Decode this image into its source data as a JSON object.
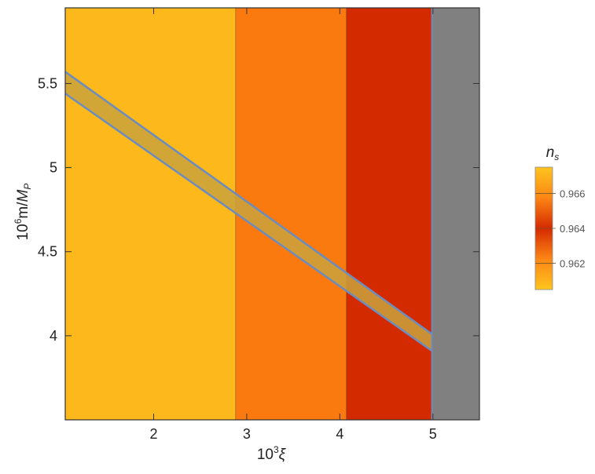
{
  "chart_data": {
    "type": "heatmap",
    "x_axis": {
      "label_base": "10",
      "label_exp": "3",
      "label_symbol": "ξ",
      "range": [
        1.05,
        5.5
      ],
      "ticks": [
        2,
        3,
        4,
        5
      ],
      "tick_labels": [
        "2",
        "3",
        "4",
        "5"
      ]
    },
    "y_axis": {
      "label_base": "10",
      "label_exp": "6",
      "label_mid": "m/",
      "label_sym": "M",
      "label_sub": "P",
      "range": [
        3.5,
        5.95
      ],
      "ticks": [
        4,
        4.5,
        5,
        5.5
      ],
      "tick_labels": [
        "4",
        "4.5",
        "5",
        "5.5"
      ]
    },
    "regions": [
      {
        "x0": 1.05,
        "x1": 2.88,
        "color": "#fdb81b",
        "n_s": 0.967
      },
      {
        "x0": 2.88,
        "x1": 4.07,
        "color": "#fb7a10",
        "n_s": 0.965
      },
      {
        "x0": 4.07,
        "x1": 4.99,
        "color": "#d42a00",
        "n_s": 0.963
      },
      {
        "x0": 4.99,
        "x1": 5.5,
        "color": "#808080",
        "n_s": null
      }
    ],
    "allowed_band": {
      "color": "#c9a23c",
      "edge_color": "#6b8cc0",
      "upper": [
        [
          1.05,
          5.57
        ],
        [
          4.99,
          4.01
        ]
      ],
      "lower": [
        [
          1.05,
          5.44
        ],
        [
          4.99,
          3.91
        ]
      ]
    },
    "legend": {
      "title_sym": "n",
      "title_sub": "s",
      "ticks": [
        0.966,
        0.964,
        0.962
      ],
      "tick_labels": [
        "0.966",
        "0.964",
        "0.962"
      ],
      "range": [
        0.9605,
        0.9675
      ],
      "colors": [
        "#fdc51e",
        "#fc8615",
        "#d42a00",
        "#fc8615",
        "#fdc51e"
      ]
    }
  }
}
